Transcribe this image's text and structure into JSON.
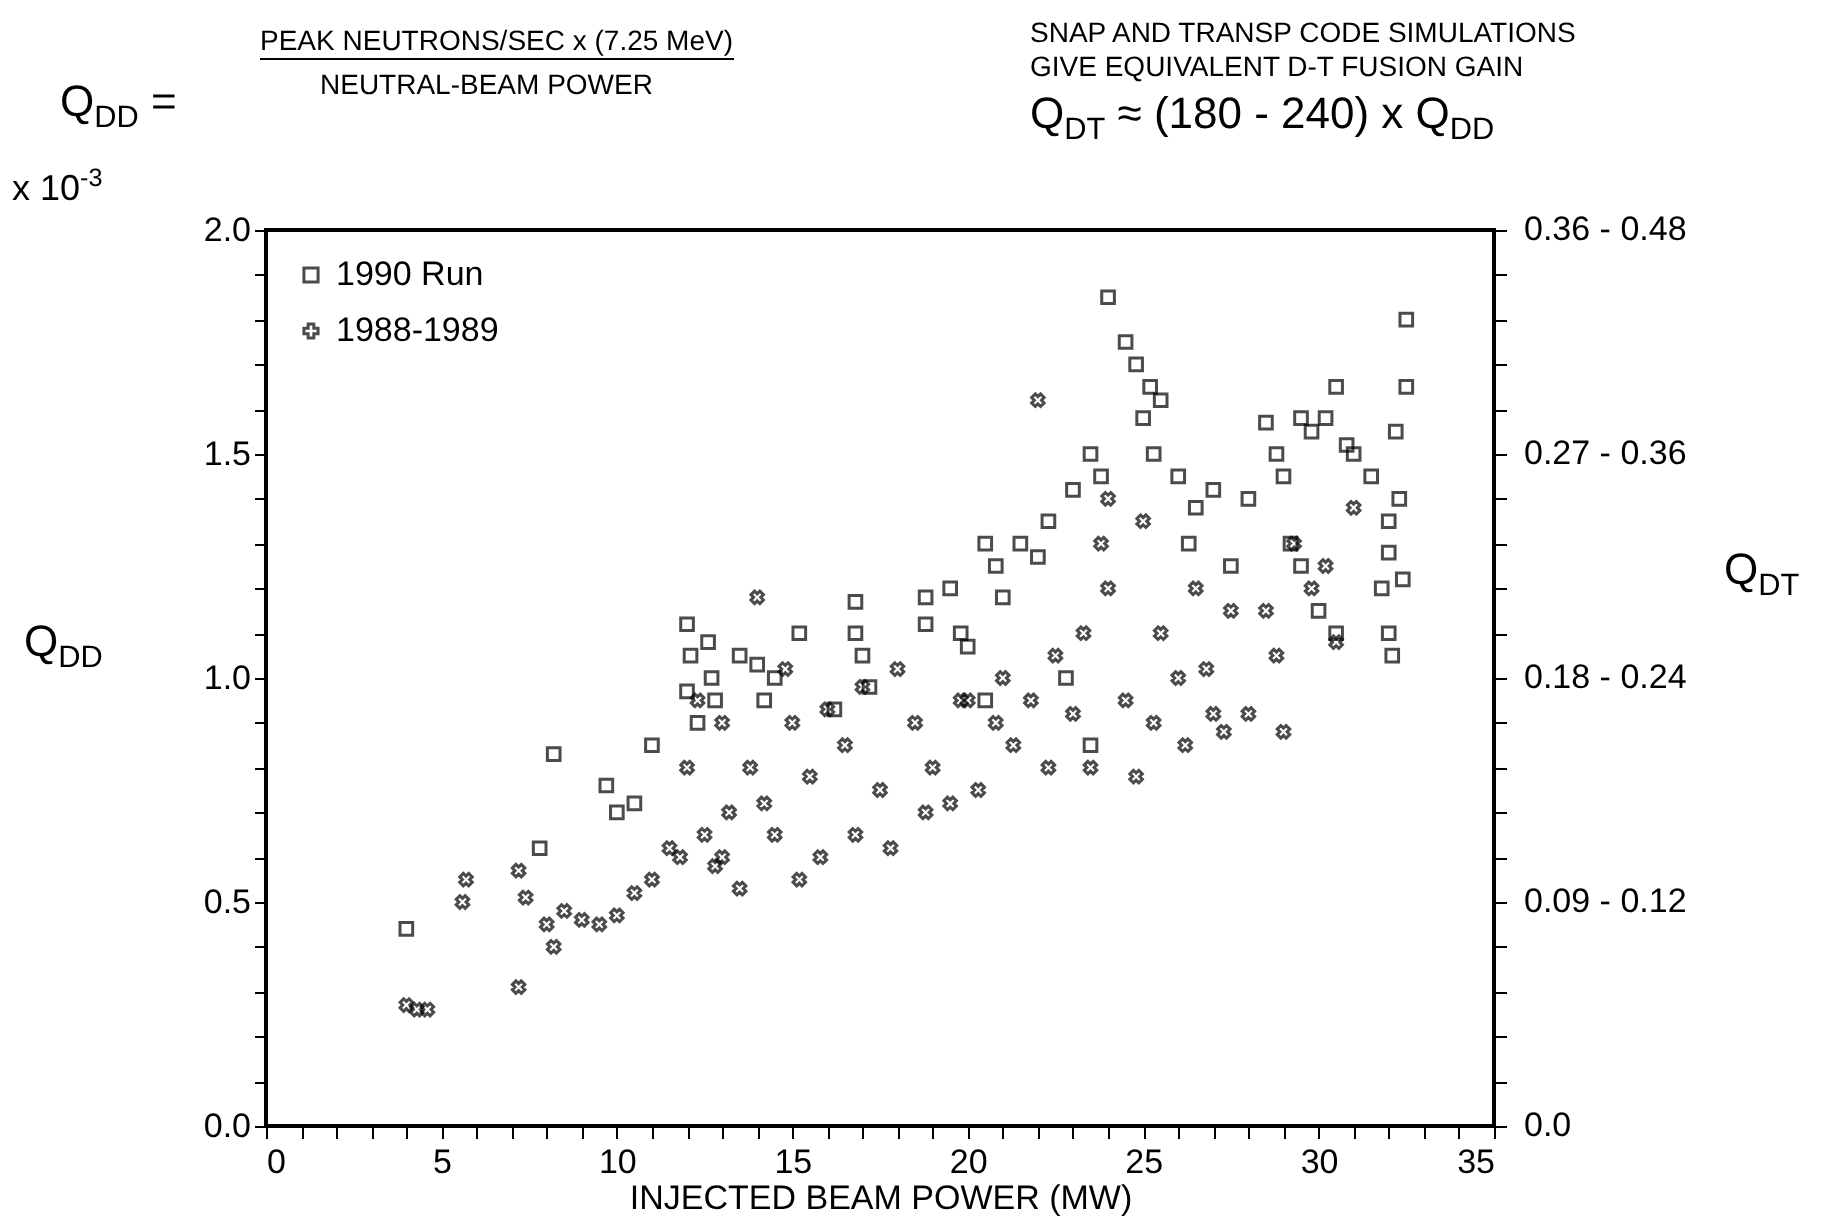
{
  "chart_data": {
    "type": "scatter",
    "annotations": [
      "Q$_{DD}$ =",
      "PEAK NEUTRONS/SEC x (7.25 MeV)",
      "NEUTRAL-BEAM POWER",
      "SNAP AND TRANSP CODE SIMULATIONS",
      "GIVE EQUIVALENT D-T FUSION GAIN",
      "Q$_{DT}$ ≈ (180 - 240) x Q$_{DD}$",
      "x 10$^{-3}$",
      "0.36 - 0.48",
      "0.27 - 0.36",
      "0.18 - 0.24",
      "0.09 - 0.12",
      "0.0",
      "Q$_{DT}$"
    ],
    "xlabel": "INJECTED BEAM POWER (MW)",
    "ylabel": "Q$_{DD}$",
    "xlim": [
      0,
      35
    ],
    "ylim": [
      0,
      2
    ],
    "xticks": [
      0,
      {
        "value": 1,
        "label": null
      },
      {
        "value": 2,
        "label": null
      },
      {
        "value": 3,
        "label": null
      },
      {
        "value": 4,
        "label": null
      },
      5,
      {
        "value": 6,
        "label": null
      },
      {
        "value": 7,
        "label": null
      },
      {
        "value": 8,
        "label": null
      },
      {
        "value": 9,
        "label": null
      },
      10,
      {
        "value": 11,
        "label": null
      },
      {
        "value": 12,
        "label": null
      },
      {
        "value": 13,
        "label": null
      },
      {
        "value": 14,
        "label": null
      },
      15,
      {
        "value": 16,
        "label": null
      },
      {
        "value": 17,
        "label": null
      },
      {
        "value": 18,
        "label": null
      },
      {
        "value": 19,
        "label": null
      },
      20,
      {
        "value": 21,
        "label": null
      },
      {
        "value": 22,
        "label": null
      },
      {
        "value": 23,
        "label": null
      },
      {
        "value": 24,
        "label": null
      },
      25,
      {
        "value": 26,
        "label": null
      },
      {
        "value": 27,
        "label": null
      },
      {
        "value": 28,
        "label": null
      },
      {
        "value": 29,
        "label": null
      },
      30,
      {
        "value": 31,
        "label": null
      },
      {
        "value": 32,
        "label": null
      },
      {
        "value": 33,
        "label": null
      },
      {
        "value": 34,
        "label": null
      },
      35
    ],
    "yticks": [
      {
        "value": 0,
        "label": "0.0"
      },
      {
        "value": 0.1,
        "label": null
      },
      {
        "value": 0.2,
        "label": null
      },
      {
        "value": 0.3,
        "label": null
      },
      {
        "value": 0.4,
        "label": null
      },
      0.5,
      {
        "value": 0.6,
        "label": null
      },
      {
        "value": 0.7,
        "label": null
      },
      {
        "value": 0.8,
        "label": null
      },
      {
        "value": 0.9,
        "label": null
      },
      {
        "value": 1,
        "label": "1.0"
      },
      {
        "value": 1.1,
        "label": null
      },
      {
        "value": 1.2,
        "label": null
      },
      {
        "value": 1.3,
        "label": null
      },
      {
        "value": 1.4,
        "label": null
      },
      1.5,
      {
        "value": 1.6,
        "label": null
      },
      {
        "value": 1.7,
        "label": null
      },
      {
        "value": 1.8,
        "label": null
      },
      {
        "value": 1.9,
        "label": null
      },
      {
        "value": 2,
        "label": "2.0"
      }
    ],
    "legend": "top left",
    "grid": false,
    "series": [
      {
        "name": "1990 Run",
        "color": "#000000",
        "marker": "square",
        "x": [
          4.0,
          8.2,
          7.8,
          9.7,
          10,
          10.5,
          11,
          12,
          12.1,
          12,
          12.3,
          12.6,
          12.7,
          12.8,
          13.5,
          14,
          14.2,
          14.5,
          15.2,
          16.2,
          16.8,
          16.8,
          17,
          17.2,
          18.8,
          18.8,
          19.5,
          19.8,
          20,
          20.5,
          20.8,
          21,
          21.5,
          22,
          22.3,
          23,
          23.5,
          23.8,
          24.0,
          24.5,
          24.8,
          25.2,
          25,
          25.5,
          25.3,
          26,
          26.5,
          26.3,
          27,
          27.5,
          28,
          28.5,
          28.8,
          29,
          29.5,
          29.8,
          30.2,
          30.5,
          30.8,
          29.2,
          29.5,
          30,
          30.5,
          31,
          31.5,
          32,
          32.3,
          32.5,
          32.5,
          32.2,
          32,
          31.8,
          32,
          32.1,
          32.4,
          23.5,
          22.8,
          20.5
        ],
        "values": [
          0.44,
          0.83,
          0.62,
          0.76,
          0.7,
          0.72,
          0.85,
          1.12,
          1.05,
          0.97,
          0.9,
          1.08,
          1,
          0.95,
          1.05,
          1.03,
          0.95,
          1,
          1.1,
          0.93,
          1.17,
          1.1,
          1.05,
          0.98,
          1.18,
          1.12,
          1.2,
          1.1,
          1.07,
          1.3,
          1.25,
          1.18,
          1.3,
          1.27,
          1.35,
          1.42,
          1.5,
          1.45,
          1.85,
          1.75,
          1.7,
          1.65,
          1.58,
          1.62,
          1.5,
          1.45,
          1.38,
          1.3,
          1.42,
          1.25,
          1.4,
          1.57,
          1.5,
          1.45,
          1.58,
          1.55,
          1.58,
          1.65,
          1.52,
          1.3,
          1.25,
          1.15,
          1.1,
          1.5,
          1.45,
          1.35,
          1.4,
          1.8,
          1.65,
          1.55,
          1.28,
          1.2,
          1.1,
          1.05,
          1.22,
          0.85,
          1,
          0.95
        ]
      },
      {
        "name": "1988-1989",
        "color": "#000000",
        "marker": "cross",
        "x": [
          4,
          4.3,
          4.6,
          5.7,
          5.6,
          7.2,
          7.2,
          7.4,
          8,
          8.2,
          8.5,
          9,
          9.5,
          10,
          10.5,
          11,
          11.5,
          11.8,
          12,
          12.5,
          12.8,
          13,
          13.2,
          13.5,
          13.8,
          14,
          14.2,
          14.5,
          15,
          15.2,
          15.5,
          15.8,
          16,
          16.5,
          16.8,
          17,
          17.5,
          17.8,
          18.5,
          18.8,
          19,
          19.5,
          20,
          20.3,
          20.8,
          21,
          21.3,
          21.8,
          22,
          22.3,
          22.5,
          23,
          23.3,
          23.5,
          24,
          24,
          24.5,
          24.8,
          25,
          25.3,
          25.5,
          26,
          26.2,
          26.5,
          27,
          27.3,
          27.5,
          28,
          28.5,
          28.8,
          29,
          29.3,
          29.8,
          30.2,
          30.5,
          31,
          12.3,
          13,
          14.8,
          18,
          19.8,
          23.8,
          26.8
        ],
        "values": [
          0.27,
          0.26,
          0.26,
          0.55,
          0.5,
          0.31,
          0.57,
          0.51,
          0.45,
          0.4,
          0.48,
          0.46,
          0.45,
          0.47,
          0.52,
          0.55,
          0.62,
          0.6,
          0.8,
          0.65,
          0.58,
          0.6,
          0.7,
          0.53,
          0.8,
          1.18,
          0.72,
          0.65,
          0.9,
          0.55,
          0.78,
          0.6,
          0.93,
          0.85,
          0.65,
          0.98,
          0.75,
          0.62,
          0.9,
          0.7,
          0.8,
          0.72,
          0.95,
          0.75,
          0.9,
          1,
          0.85,
          0.95,
          1.62,
          0.8,
          1.05,
          0.92,
          1.1,
          0.8,
          1.4,
          1.2,
          0.95,
          0.78,
          1.35,
          0.9,
          1.1,
          1,
          0.85,
          1.2,
          0.92,
          0.88,
          1.15,
          0.92,
          1.15,
          1.05,
          0.88,
          1.3,
          1.2,
          1.25,
          1.08,
          1.38,
          0.95,
          0.9,
          1.02,
          1.02,
          0.95,
          1.3,
          1.02
        ]
      }
    ]
  }
}
